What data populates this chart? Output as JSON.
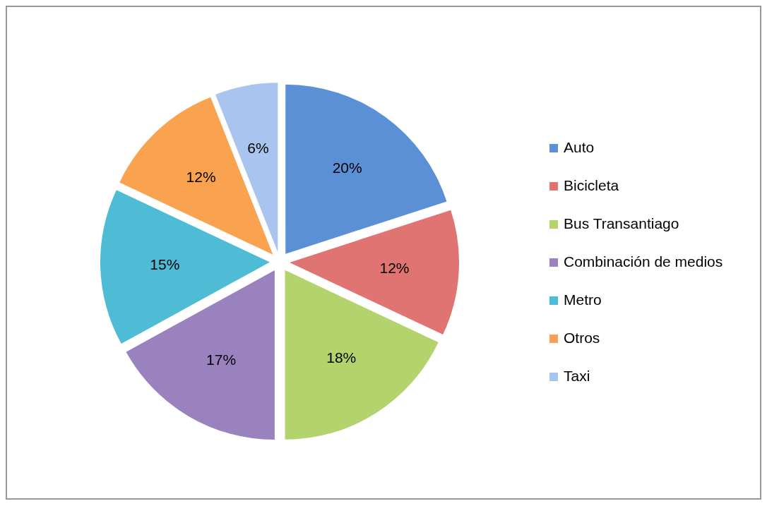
{
  "chart_data": {
    "type": "pie",
    "categories": [
      "Auto",
      "Bicicleta",
      "Bus Transantiago",
      "Combinación de medios",
      "Metro",
      "Otros",
      "Taxi"
    ],
    "values": [
      20,
      12,
      18,
      17,
      15,
      12,
      6
    ],
    "colors": [
      "#5b8fd6",
      "#e07472",
      "#b3d46c",
      "#9a82bf",
      "#4fbcd6",
      "#f9a24f",
      "#a9c5ef"
    ],
    "value_labels": [
      "20%",
      "12%",
      "18%",
      "17%",
      "15%",
      "12%",
      "6%"
    ],
    "legend": "right"
  }
}
